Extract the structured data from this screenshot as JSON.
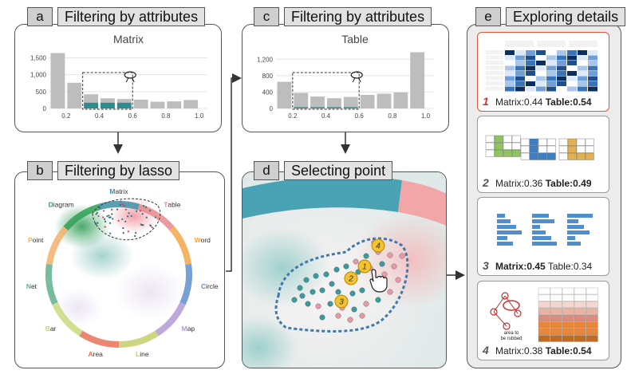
{
  "panels": {
    "a": {
      "letter": "a",
      "title": "Filtering by attributes",
      "chart_title": "Matrix"
    },
    "b": {
      "letter": "b",
      "title": "Filtering by lasso"
    },
    "c": {
      "letter": "c",
      "title": "Filtering by attributes",
      "chart_title": "Table"
    },
    "d": {
      "letter": "d",
      "title": "Selecting point"
    },
    "e": {
      "letter": "e",
      "title": "Exploring details"
    }
  },
  "chart_data": [
    {
      "type": "bar",
      "title": "Matrix",
      "x_ticks": [
        "0.2",
        "0.4",
        "0.6",
        "0.8",
        "1.0"
      ],
      "y_ticks": [
        "0",
        "500",
        "1,000",
        "1,500"
      ],
      "ylim": [
        0,
        1700
      ],
      "xlim": [
        0.1,
        1.05
      ],
      "bins": [
        0.15,
        0.25,
        0.35,
        0.45,
        0.55,
        0.65,
        0.75,
        0.85,
        0.95
      ],
      "values": [
        1640,
        760,
        420,
        300,
        280,
        260,
        200,
        210,
        250
      ],
      "selected_values": [
        0,
        0,
        170,
        170,
        170,
        0,
        0,
        0,
        0
      ],
      "selection_range": [
        0.3,
        0.6
      ]
    },
    {
      "type": "bar",
      "title": "Table",
      "x_ticks": [
        "0.2",
        "0.4",
        "0.6",
        "0.8",
        "1.0"
      ],
      "y_ticks": [
        "0",
        "400",
        "800",
        "1,200"
      ],
      "ylim": [
        0,
        1400
      ],
      "xlim": [
        0.1,
        1.05
      ],
      "bins": [
        0.15,
        0.25,
        0.35,
        0.45,
        0.55,
        0.65,
        0.75,
        0.85,
        0.95
      ],
      "values": [
        650,
        380,
        290,
        250,
        280,
        330,
        360,
        390,
        1370
      ],
      "selected_values": [
        0,
        30,
        30,
        30,
        30,
        0,
        0,
        0,
        0
      ],
      "selection_range": [
        0.2,
        0.6
      ]
    }
  ],
  "lasso_view": {
    "categories": [
      "Matrix",
      "Table",
      "Word",
      "Circle",
      "Map",
      "Line",
      "Area",
      "Bar",
      "Net",
      "Point",
      "Diagram"
    ],
    "colors": {
      "Matrix": "#3d8fa6",
      "Table": "#e8888d",
      "Word": "#f1a748",
      "Circle": "#5f8fcf",
      "Map": "#b39ad6",
      "Line": "#c5ce6a",
      "Area": "#e8715a",
      "Bar": "#c9d97c",
      "Net": "#5fb08b",
      "Point": "#f3b06b",
      "Diagram": "#2fa055"
    }
  },
  "selection_view": {
    "markers": [
      "1",
      "2",
      "3",
      "4"
    ]
  },
  "details": [
    {
      "rank": "1",
      "matrix_label": "Matrix:",
      "matrix_score": "0.44",
      "table_label": "Table:",
      "table_score": "0.54",
      "bold": "table"
    },
    {
      "rank": "2",
      "matrix_label": "Matrix:",
      "matrix_score": "0.36",
      "table_label": "Table:",
      "table_score": "0.49",
      "bold": "table"
    },
    {
      "rank": "3",
      "matrix_label": "Matrix:",
      "matrix_score": "0.45",
      "table_label": "Table:",
      "table_score": "0.34",
      "bold": "matrix"
    },
    {
      "rank": "4",
      "matrix_label": "Matrix:",
      "matrix_score": "0.38",
      "table_label": "Table:",
      "table_score": "0.54",
      "bold": "table"
    }
  ],
  "thumb4_caption": [
    "area to",
    "be rubbed"
  ]
}
